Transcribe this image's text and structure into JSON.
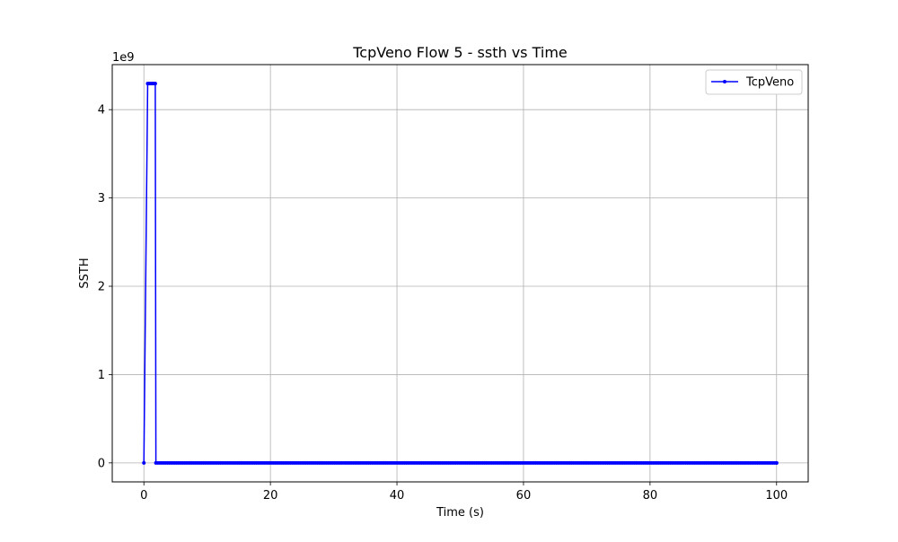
{
  "chart_data": {
    "type": "line",
    "title": "TcpVeno Flow 5 - ssth vs Time",
    "xlabel": "Time (s)",
    "ylabel": "SSTH",
    "y_scale_label": "1e9",
    "xlim": [
      -5,
      105
    ],
    "ylim": [
      -0.215,
      4.51
    ],
    "x_ticks": [
      0,
      20,
      40,
      60,
      80,
      100
    ],
    "x_tick_labels": [
      "0",
      "20",
      "40",
      "60",
      "80",
      "100"
    ],
    "y_ticks": [
      0,
      1,
      2,
      3,
      4
    ],
    "y_tick_labels": [
      "0",
      "1",
      "2",
      "3",
      "4"
    ],
    "grid": true,
    "legend_position": "top-right",
    "series": [
      {
        "name": "TcpVeno",
        "color": "#0000ff",
        "marker": "dot",
        "spike_points": [
          [
            0.0,
            0.0
          ],
          [
            0.6,
            4.295
          ],
          [
            0.8,
            4.295
          ],
          [
            1.0,
            4.295
          ],
          [
            1.2,
            4.295
          ],
          [
            1.4,
            4.295
          ],
          [
            1.6,
            4.295
          ],
          [
            1.8,
            4.295
          ],
          [
            1.9,
            0.0
          ]
        ],
        "flat_segment": {
          "x_start": 1.9,
          "x_end": 100.0,
          "y": 0.0,
          "step": 0.3
        }
      }
    ]
  }
}
